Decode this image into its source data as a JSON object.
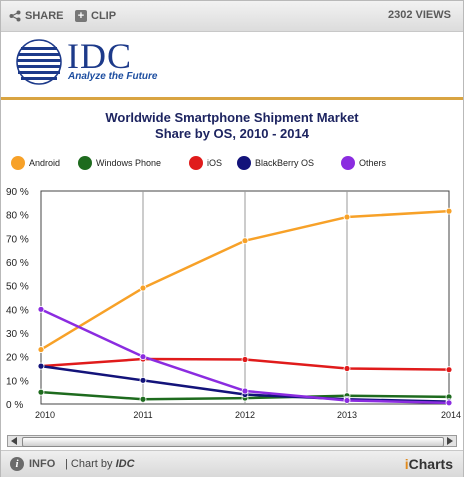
{
  "toolbar": {
    "share_label": "SHARE",
    "clip_label": "CLIP",
    "views_label": "2302 VIEWS"
  },
  "header": {
    "logo_text": "IDC",
    "logo_tagline": "Analyze the Future"
  },
  "chart_data": {
    "type": "line",
    "title": "Worldwide Smartphone Shipment Market Share by OS, 2010 - 2014",
    "title_lines": [
      "Worldwide Smartphone Shipment Market",
      "Share by OS, 2010 - 2014"
    ],
    "x": [
      "2010",
      "2011",
      "2012",
      "2013",
      "2014"
    ],
    "y_ticks": [
      "0 %",
      "10 %",
      "20 %",
      "30 %",
      "40 %",
      "50 %",
      "60 %",
      "70 %",
      "80 %",
      "90 %"
    ],
    "ylim": [
      0,
      90
    ],
    "y_unit": "%",
    "grid": {
      "vertical": true,
      "horizontal": false
    },
    "legend_position": "top",
    "series": [
      {
        "name": "Android",
        "color": "#f7a128",
        "values": [
          23,
          49,
          69,
          79,
          81.5
        ]
      },
      {
        "name": "Windows Phone",
        "color": "#1e6b1e",
        "values": [
          5,
          2,
          2.5,
          3.5,
          3
        ]
      },
      {
        "name": "iOS",
        "color": "#e01b1b",
        "values": [
          16,
          19,
          18.8,
          15,
          14.5
        ]
      },
      {
        "name": "BlackBerry OS",
        "color": "#13137a",
        "values": [
          16,
          10,
          4,
          2,
          1
        ]
      },
      {
        "name": "Others",
        "color": "#8b2ce0",
        "values": [
          40,
          20,
          5.5,
          1.5,
          0.5
        ]
      }
    ]
  },
  "footer": {
    "info_label": "INFO",
    "chart_by_prefix": "| Chart by",
    "chart_by_brand": "IDC",
    "brand_i": "i",
    "brand_rest": "Charts"
  }
}
